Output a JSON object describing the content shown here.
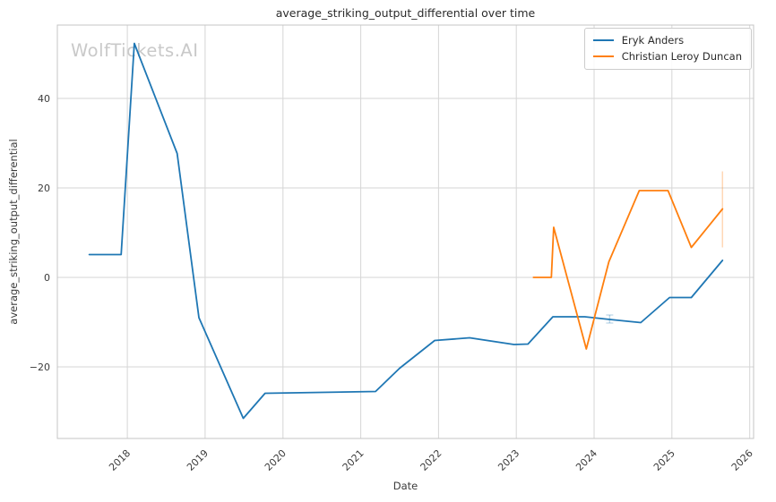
{
  "chart_data": {
    "type": "line",
    "title": "average_striking_output_differential over time",
    "xlabel": "Date",
    "ylabel": "average_striking_output_differential",
    "watermark": "WolfTickets.AI",
    "grid": true,
    "legend": {
      "position": "top-right",
      "entries": [
        "Eryk Anders",
        "Christian Leroy Duncan"
      ]
    },
    "xlim": [
      2017.1,
      2026.05
    ],
    "ylim": [
      -36.0,
      56.4
    ],
    "x_ticks": [
      2018,
      2019,
      2020,
      2021,
      2022,
      2023,
      2024,
      2025,
      2026
    ],
    "y_ticks": [
      -20,
      0,
      20,
      40
    ],
    "series": [
      {
        "name": "Eryk Anders",
        "color": "#1f77b4",
        "points": [
          [
            2017.51,
            5.1
          ],
          [
            2017.92,
            5.1
          ],
          [
            2018.09,
            52.3
          ],
          [
            2018.64,
            27.7
          ],
          [
            2018.92,
            -9.0
          ],
          [
            2019.49,
            -31.5
          ],
          [
            2019.77,
            -25.9
          ],
          [
            2021.19,
            -25.5
          ],
          [
            2021.5,
            -20.3
          ],
          [
            2021.95,
            -14.1
          ],
          [
            2022.4,
            -13.5
          ],
          [
            2022.97,
            -15.0
          ],
          [
            2023.15,
            -14.9
          ],
          [
            2023.47,
            -8.8
          ],
          [
            2023.88,
            -8.8
          ],
          [
            2024.2,
            -9.4
          ],
          [
            2024.6,
            -10.1
          ],
          [
            2024.97,
            -4.5
          ],
          [
            2025.25,
            -4.5
          ],
          [
            2025.65,
            3.8
          ]
        ]
      },
      {
        "name": "Christian Leroy Duncan",
        "color": "#ff7f0e",
        "points": [
          [
            2023.22,
            0.0
          ],
          [
            2023.45,
            0.0
          ],
          [
            2023.48,
            11.2
          ],
          [
            2023.9,
            -16.0
          ],
          [
            2024.19,
            3.5
          ],
          [
            2024.58,
            19.4
          ],
          [
            2024.95,
            19.4
          ],
          [
            2025.25,
            6.7
          ],
          [
            2025.65,
            15.3
          ]
        ]
      }
    ],
    "annotations": [
      {
        "type": "error-bar",
        "series_index": 1,
        "x": 2025.65,
        "y_low": 6.7,
        "y_high": 23.7,
        "caps": false
      },
      {
        "type": "error-bar",
        "series_index": 0,
        "x": 2024.2,
        "y_low": -10.2,
        "y_high": -8.4,
        "caps": true
      }
    ]
  }
}
